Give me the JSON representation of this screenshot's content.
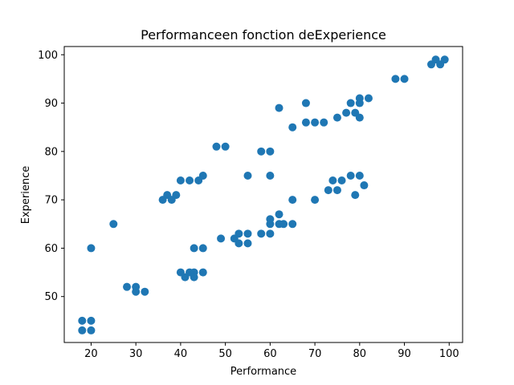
{
  "chart_data": {
    "type": "scatter",
    "title": "Performanceen fonction deExperience",
    "xlabel": "Performance",
    "ylabel": "Experience",
    "xlim": [
      14,
      103
    ],
    "ylim": [
      40.5,
      101.7
    ],
    "xticks": [
      20,
      30,
      40,
      50,
      60,
      70,
      80,
      90,
      100
    ],
    "yticks": [
      50,
      60,
      70,
      80,
      90,
      100
    ],
    "grid": false,
    "color": "#1f77b4",
    "points": [
      [
        18,
        45
      ],
      [
        20,
        45
      ],
      [
        18,
        43
      ],
      [
        20,
        43
      ],
      [
        20,
        60
      ],
      [
        25,
        65
      ],
      [
        28,
        52
      ],
      [
        30,
        52
      ],
      [
        30,
        51
      ],
      [
        32,
        51
      ],
      [
        36,
        70
      ],
      [
        37,
        71
      ],
      [
        38,
        70
      ],
      [
        39,
        71
      ],
      [
        40,
        74
      ],
      [
        42,
        74
      ],
      [
        44,
        74
      ],
      [
        45,
        75
      ],
      [
        40,
        55
      ],
      [
        41,
        54
      ],
      [
        42,
        55
      ],
      [
        43,
        55
      ],
      [
        43,
        54
      ],
      [
        45,
        55
      ],
      [
        43,
        60
      ],
      [
        45,
        60
      ],
      [
        48,
        81
      ],
      [
        50,
        81
      ],
      [
        49,
        62
      ],
      [
        52,
        62
      ],
      [
        53,
        63
      ],
      [
        53,
        61
      ],
      [
        55,
        63
      ],
      [
        55,
        61
      ],
      [
        55,
        75
      ],
      [
        58,
        80
      ],
      [
        60,
        80
      ],
      [
        60,
        75
      ],
      [
        58,
        63
      ],
      [
        60,
        63
      ],
      [
        60,
        65
      ],
      [
        60,
        66
      ],
      [
        62,
        67
      ],
      [
        62,
        65
      ],
      [
        63,
        65
      ],
      [
        65,
        65
      ],
      [
        62,
        89
      ],
      [
        65,
        85
      ],
      [
        65,
        70
      ],
      [
        68,
        90
      ],
      [
        68,
        86
      ],
      [
        70,
        86
      ],
      [
        72,
        86
      ],
      [
        70,
        70
      ],
      [
        73,
        72
      ],
      [
        74,
        74
      ],
      [
        75,
        72
      ],
      [
        76,
        74
      ],
      [
        75,
        87
      ],
      [
        77,
        88
      ],
      [
        78,
        90
      ],
      [
        79,
        88
      ],
      [
        80,
        90
      ],
      [
        80,
        91
      ],
      [
        80,
        87
      ],
      [
        82,
        91
      ],
      [
        78,
        75
      ],
      [
        80,
        75
      ],
      [
        79,
        71
      ],
      [
        81,
        73
      ],
      [
        88,
        95
      ],
      [
        90,
        95
      ],
      [
        96,
        98
      ],
      [
        97,
        99
      ],
      [
        98,
        98
      ],
      [
        99,
        99
      ]
    ]
  }
}
